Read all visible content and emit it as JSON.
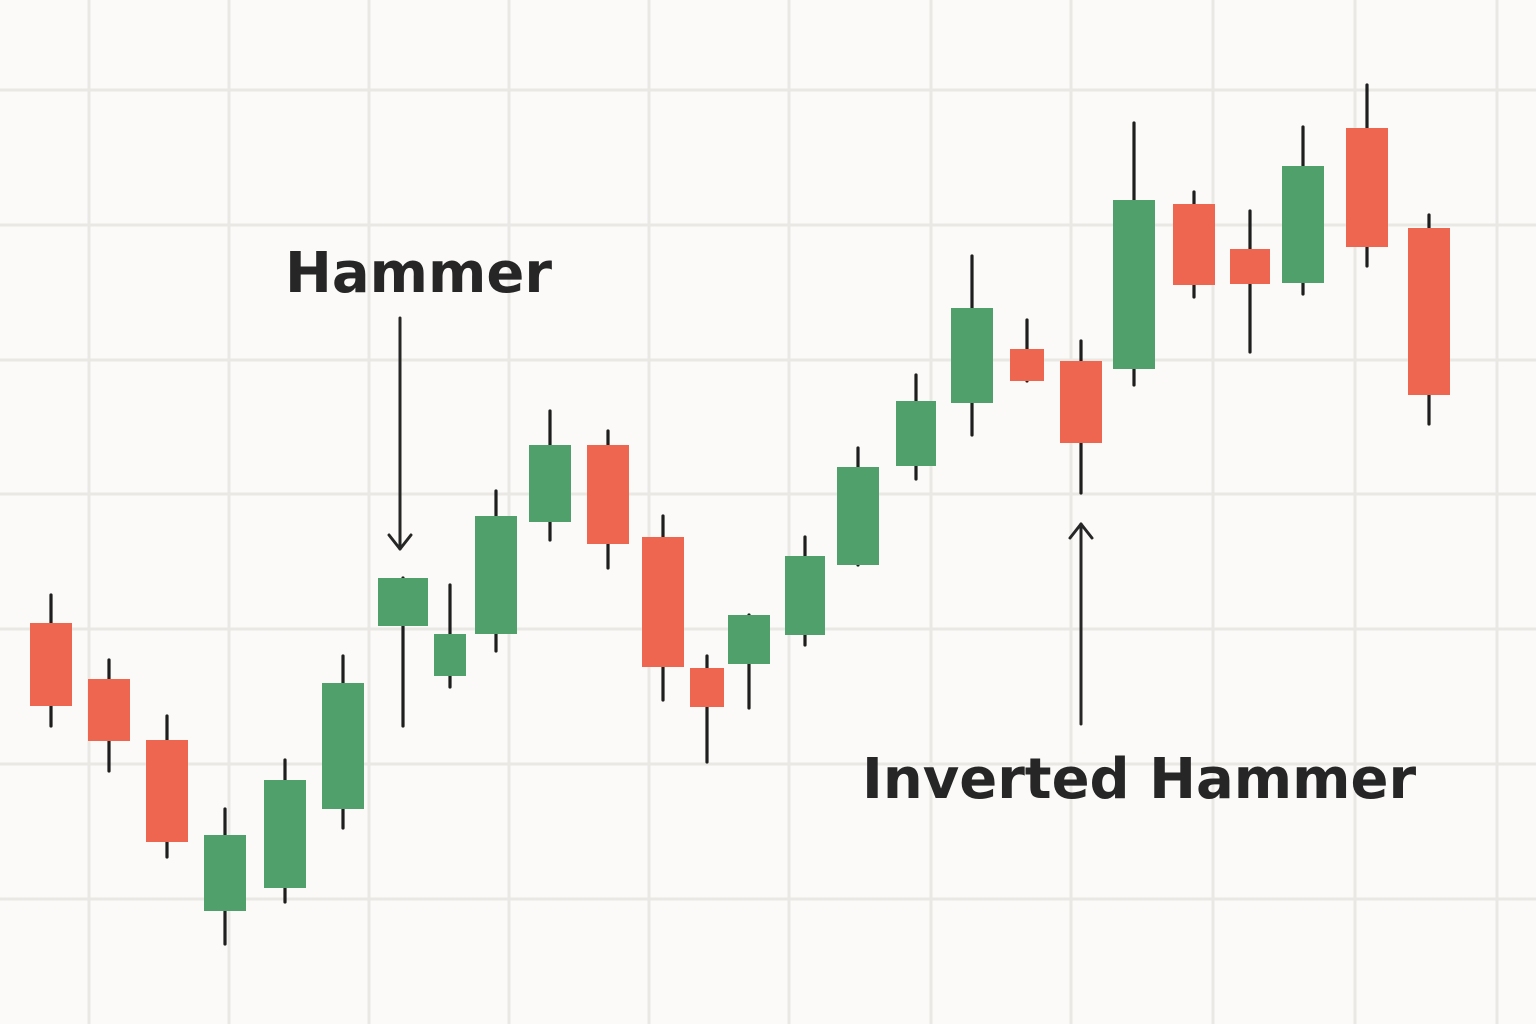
{
  "colors": {
    "background": "#fbfaf8",
    "grid": "#e9e8e5",
    "up": "#50a06c",
    "down": "#ef6650",
    "wick": "#1e1e1e",
    "annotation": "#262626"
  },
  "chart_data": {
    "type": "candlestick",
    "title": "",
    "xlabel": "",
    "ylabel": "",
    "grid": true,
    "ylim": [
      0,
      1024
    ],
    "candles": [
      {
        "open": 401,
        "close": 318,
        "high": 429,
        "low": 298
      },
      {
        "open": 345,
        "close": 283,
        "high": 364,
        "low": 253
      },
      {
        "open": 284,
        "close": 182,
        "high": 308,
        "low": 167
      },
      {
        "open": 113,
        "close": 189,
        "high": 215,
        "low": 80
      },
      {
        "open": 136,
        "close": 244,
        "high": 264,
        "low": 122
      },
      {
        "open": 215,
        "close": 341,
        "high": 368,
        "low": 196
      },
      {
        "open": 398,
        "close": 446,
        "high": 446,
        "low": 298
      },
      {
        "open": 348,
        "close": 390,
        "high": 439,
        "low": 337
      },
      {
        "open": 390,
        "close": 508,
        "high": 533,
        "low": 373
      },
      {
        "open": 502,
        "close": 579,
        "high": 613,
        "low": 484
      },
      {
        "open": 579,
        "close": 480,
        "high": 593,
        "low": 456
      },
      {
        "open": 487,
        "close": 357,
        "high": 508,
        "low": 324
      },
      {
        "open": 356,
        "close": 317,
        "high": 368,
        "low": 262
      },
      {
        "open": 360,
        "close": 409,
        "high": 409,
        "low": 316
      },
      {
        "open": 389,
        "close": 468,
        "high": 487,
        "low": 379
      },
      {
        "open": 459,
        "close": 557,
        "high": 576,
        "low": 459
      },
      {
        "open": 558,
        "close": 623,
        "high": 649,
        "low": 545
      },
      {
        "open": 621,
        "close": 716,
        "high": 768,
        "low": 589
      },
      {
        "open": 675,
        "close": 643,
        "high": 704,
        "low": 643
      },
      {
        "open": 663,
        "close": 581,
        "high": 683,
        "low": 531
      },
      {
        "open": 655,
        "close": 824,
        "high": 901,
        "low": 639
      },
      {
        "open": 820,
        "close": 739,
        "high": 832,
        "low": 727
      },
      {
        "open": 775,
        "close": 740,
        "high": 813,
        "low": 672
      },
      {
        "open": 741,
        "close": 858,
        "high": 897,
        "low": 730
      },
      {
        "open": 896,
        "close": 777,
        "high": 939,
        "low": 758
      },
      {
        "open": 796,
        "close": 629,
        "high": 809,
        "low": 600
      }
    ],
    "annotations": [
      {
        "label": "Hammer",
        "candle_index": 6,
        "arrow_direction": "down"
      },
      {
        "label": "Inverted Hammer",
        "candle_index": 19,
        "arrow_direction": "up"
      }
    ]
  }
}
